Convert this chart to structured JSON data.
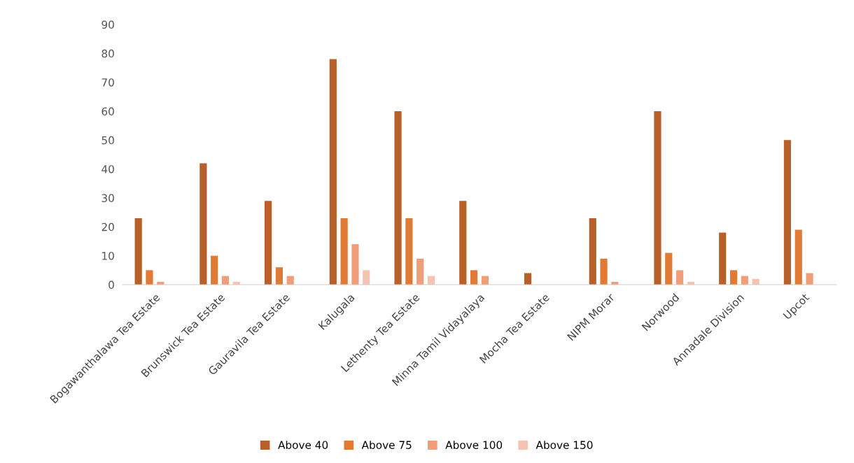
{
  "chart_data": {
    "type": "bar",
    "categories": [
      "Bogawanthalawa Tea Estate",
      "Brunswick Tea Estate",
      "Gauravila Tea Estate",
      "Kalugala",
      "Lethenty Tea Estate",
      "Minna Tamil Vidayalaya",
      "Mocha Tea Estate",
      "NIPM Morar",
      "Norwood",
      "Annadale Division",
      "Upcot"
    ],
    "series": [
      {
        "name": "Above 40",
        "color": "#b8602a",
        "values": [
          23,
          42,
          29,
          78,
          60,
          29,
          4,
          23,
          60,
          18,
          50
        ]
      },
      {
        "name": "Above 75",
        "color": "#e07a35",
        "values": [
          5,
          10,
          6,
          23,
          23,
          5,
          0,
          9,
          11,
          5,
          19
        ]
      },
      {
        "name": "Above 100",
        "color": "#f09e7a",
        "values": [
          1,
          3,
          3,
          14,
          9,
          3,
          0,
          1,
          5,
          3,
          4
        ]
      },
      {
        "name": "Above 150",
        "color": "#f6c3b0",
        "values": [
          0,
          1,
          0,
          5,
          3,
          0,
          0,
          0,
          1,
          2,
          0
        ]
      }
    ],
    "ylim": [
      0,
      90
    ],
    "yticks": [
      0,
      10,
      20,
      30,
      40,
      50,
      60,
      70,
      80,
      90
    ],
    "grid": false,
    "legend": "bottom"
  }
}
